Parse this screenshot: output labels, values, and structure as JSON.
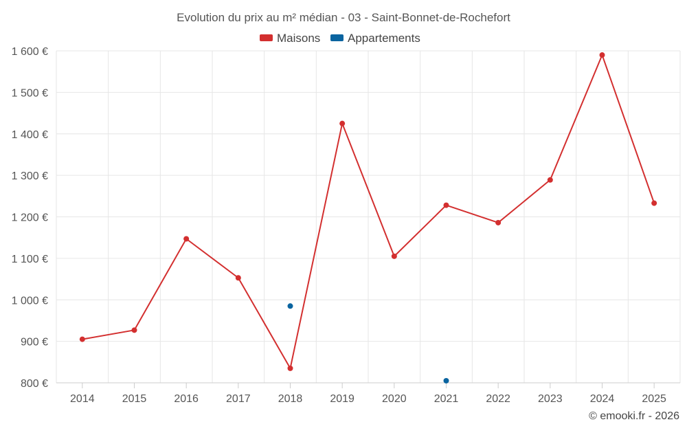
{
  "chart_data": {
    "type": "line",
    "title": "Evolution du prix au m² médian - 03 - Saint-Bonnet-de-Rochefort",
    "x": [
      "2014",
      "2015",
      "2016",
      "2017",
      "2018",
      "2019",
      "2020",
      "2021",
      "2022",
      "2023",
      "2024",
      "2025"
    ],
    "ylim": [
      800,
      1600
    ],
    "yticks": [
      800,
      900,
      1000,
      1100,
      1200,
      1300,
      1400,
      1500,
      1600
    ],
    "ytick_labels": [
      "800 €",
      "900 €",
      "1 000 €",
      "1 100 €",
      "1 200 €",
      "1 300 €",
      "1 400 €",
      "1 500 €",
      "1 600 €"
    ],
    "grid": true,
    "legend_position": "top-center",
    "series": [
      {
        "name": "Maisons",
        "color": "#d32f2f",
        "values": [
          905,
          927,
          1147,
          1053,
          835,
          1425,
          1105,
          1228,
          1186,
          1289,
          1590,
          1233
        ]
      },
      {
        "name": "Appartements",
        "color": "#0a64a0",
        "values": [
          null,
          null,
          null,
          null,
          985,
          null,
          null,
          805,
          null,
          null,
          null,
          null
        ]
      }
    ]
  },
  "credit": "© emooki.fr - 2026"
}
